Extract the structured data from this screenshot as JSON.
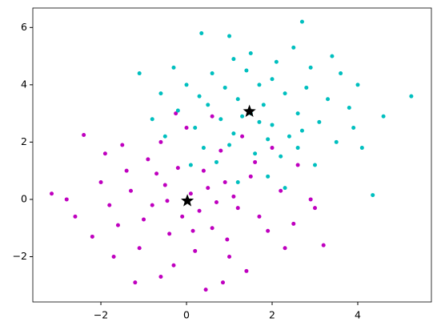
{
  "chart_data": {
    "type": "scatter",
    "xlim": [
      -3.59,
      5.72
    ],
    "ylim": [
      -3.58,
      6.68
    ],
    "xticks": [
      {
        "value": -2,
        "label": "−2"
      },
      0,
      2,
      4
    ],
    "yticks": [
      {
        "value": -2,
        "label": "−2"
      },
      0,
      2,
      4,
      6
    ],
    "grid": false,
    "series": [
      {
        "color": "#bf00bf",
        "marker": "circle",
        "x": [
          -3.15,
          3.2,
          -2.6,
          0.45,
          -1.2,
          -2.4,
          -1.9,
          2.5,
          2.9,
          1.6,
          -0.5,
          0.3,
          -0.8,
          0.9,
          -0.2,
          0.6,
          -1.3,
          1.2,
          0.1,
          -0.4,
          1.5,
          -1.6,
          0.8,
          -0.9,
          0.2,
          1.9,
          -2.0,
          -0.1,
          0.5,
          -0.6,
          1.0,
          -1.1,
          2.2,
          -1.8,
          0.0,
          0.4,
          -0.3,
          1.3,
          -1.4,
          0.7,
          -2.2,
          1.7,
          -0.7,
          0.95,
          -1.0,
          0.15,
          2.0,
          -0.45,
          1.1,
          -1.5,
          0.6,
          -0.25,
          2.6,
          -2.8,
          1.4,
          -0.6,
          0.85,
          -1.7,
          2.3,
          3.0
        ],
        "values": [
          0.2,
          -1.6,
          -0.6,
          -3.15,
          -2.9,
          2.25,
          1.6,
          -0.85,
          0.0,
          1.3,
          0.5,
          -0.4,
          -0.2,
          0.6,
          1.1,
          -1.0,
          0.3,
          -0.3,
          0.2,
          -1.2,
          0.8,
          -0.9,
          1.7,
          1.4,
          -1.8,
          -1.1,
          0.6,
          -0.6,
          0.4,
          2.0,
          -2.0,
          -1.7,
          0.3,
          -0.2,
          2.5,
          1.0,
          -2.3,
          2.2,
          1.0,
          -0.1,
          -1.3,
          -0.6,
          0.9,
          -1.4,
          -0.7,
          -1.1,
          1.8,
          -0.05,
          0.1,
          1.9,
          2.9,
          3.0,
          1.2,
          0.0,
          -2.5,
          -2.7,
          -2.9,
          -2.0,
          -1.7,
          -0.3
        ]
      },
      {
        "color": "#00bfbf",
        "marker": "circle",
        "x": [
          5.25,
          4.35,
          2.7,
          4.6,
          -1.1,
          0.35,
          3.6,
          3.9,
          -0.6,
          1.0,
          1.5,
          1.2,
          2.0,
          0.8,
          2.3,
          1.7,
          0.5,
          1.9,
          1.1,
          2.6,
          0.2,
          1.4,
          2.8,
          0.9,
          2.1,
          3.1,
          1.6,
          0.6,
          2.4,
          1.0,
          -0.2,
          3.3,
          1.3,
          2.2,
          0.4,
          1.8,
          2.9,
          0.0,
          3.5,
          1.5,
          2.5,
          0.7,
          1.9,
          3.0,
          -0.5,
          1.2,
          2.7,
          0.3,
          1.7,
          2.0,
          3.8,
          -0.8,
          4.1,
          2.3,
          0.1,
          3.4,
          1.1,
          -0.3,
          2.6,
          4.0
        ],
        "values": [
          3.6,
          0.15,
          6.2,
          2.9,
          4.4,
          5.8,
          4.4,
          2.5,
          3.7,
          5.7,
          3.0,
          3.5,
          2.6,
          2.8,
          3.7,
          4.0,
          3.3,
          2.1,
          2.3,
          3.0,
          2.5,
          4.5,
          3.9,
          3.9,
          4.8,
          2.7,
          1.6,
          4.4,
          2.2,
          1.9,
          3.1,
          3.5,
          2.9,
          1.5,
          1.8,
          3.3,
          4.6,
          4.0,
          2.0,
          5.1,
          5.3,
          1.3,
          0.8,
          1.2,
          2.2,
          0.6,
          2.4,
          3.6,
          2.7,
          4.2,
          3.2,
          2.8,
          1.8,
          0.4,
          1.2,
          5.0,
          4.9,
          4.6,
          1.8,
          4.0
        ]
      },
      {
        "color": "#000000",
        "marker": "star",
        "x": [
          0.02,
          1.47
        ],
        "values": [
          -0.05,
          3.07
        ]
      }
    ]
  }
}
